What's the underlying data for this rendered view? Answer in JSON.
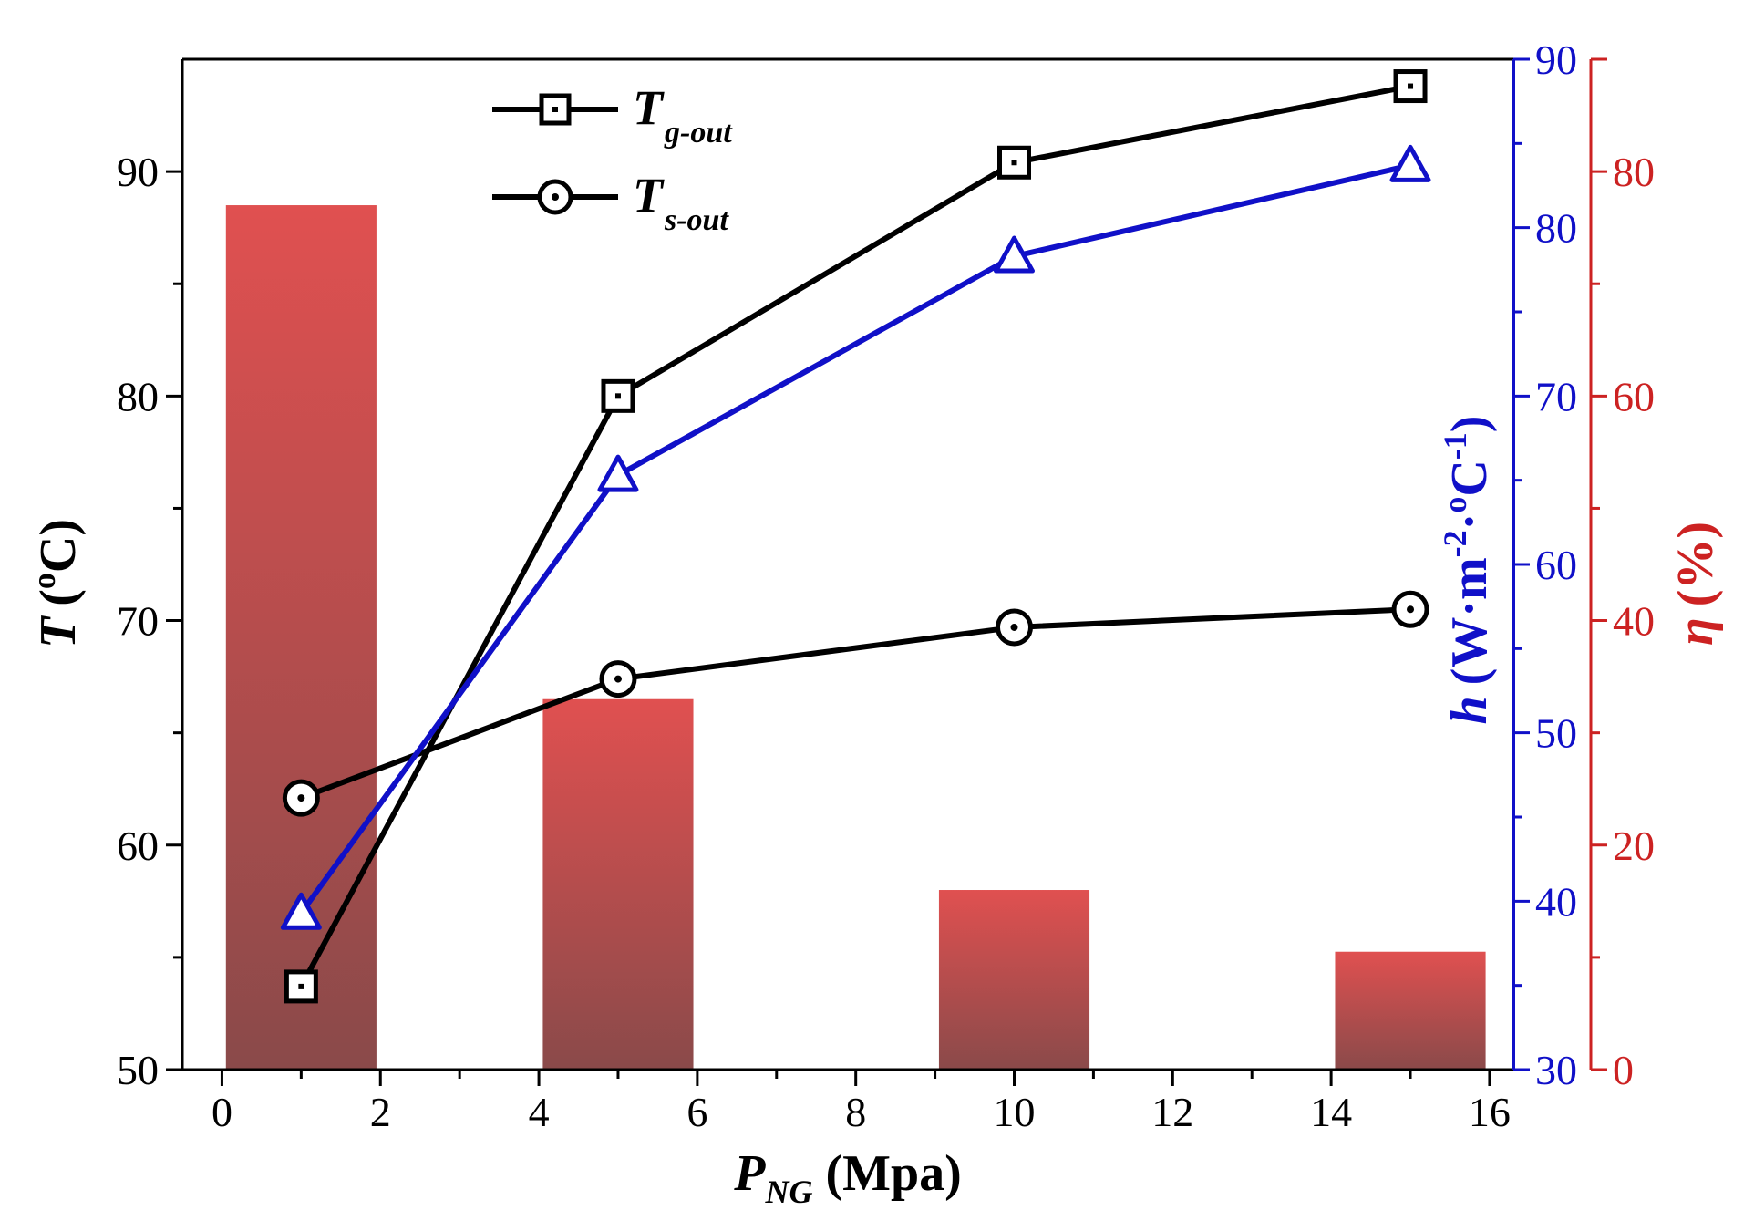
{
  "chart_data": {
    "type": "bar",
    "x_axis": {
      "label_main": "P",
      "label_sub": "NG",
      "label_unit": "(Mpa)",
      "range": [
        -0.5,
        16.3
      ],
      "ticks": [
        0,
        2,
        4,
        6,
        8,
        10,
        12,
        14,
        16
      ]
    },
    "y_left": {
      "label_main": "T",
      "label_unit": "(",
      "label_sup": "o",
      "label_end": "C)",
      "range": [
        50,
        95
      ],
      "ticks": [
        50,
        60,
        70,
        80,
        90
      ],
      "color": "#000000"
    },
    "y_right1": {
      "label_main": "h",
      "label_unit": "(W·m",
      "label_sup1": "-2",
      "label_mid": "·",
      "label_sup2": "o",
      "label_mid2": "C",
      "label_sup3": "-1",
      "label_end": ")",
      "range": [
        30,
        90
      ],
      "ticks": [
        30,
        40,
        50,
        60,
        70,
        80,
        90
      ],
      "color": "#1010c8"
    },
    "y_right2": {
      "label_main": "η",
      "label_unit": "(%)",
      "range": [
        0,
        90
      ],
      "ticks": [
        0,
        20,
        40,
        60,
        80
      ],
      "color": "#cc2222"
    },
    "bars": {
      "axis": "y_right2",
      "x": [
        1,
        5,
        10,
        15
      ],
      "width": 1.9,
      "values": [
        77,
        33,
        16,
        10.5
      ],
      "color_top": "#e05050",
      "color_bottom": "#8a4a4a"
    },
    "series": [
      {
        "name": "T",
        "name_sub": "g-out",
        "axis": "y_left",
        "marker": "square",
        "color": "#000000",
        "x": [
          1,
          5,
          10,
          15
        ],
        "values": [
          53.7,
          80.0,
          90.4,
          93.8
        ]
      },
      {
        "name": "T",
        "name_sub": "s-out",
        "axis": "y_left",
        "marker": "circle",
        "color": "#000000",
        "x": [
          1,
          5,
          10,
          15
        ],
        "values": [
          62.1,
          67.4,
          69.7,
          70.5
        ]
      },
      {
        "axis": "y_right1",
        "marker": "triangle",
        "color": "#1010c8",
        "x": [
          1,
          5,
          10,
          15
        ],
        "values": [
          39.3,
          65.3,
          78.3,
          83.7
        ]
      }
    ],
    "legend_position": "top-left"
  }
}
